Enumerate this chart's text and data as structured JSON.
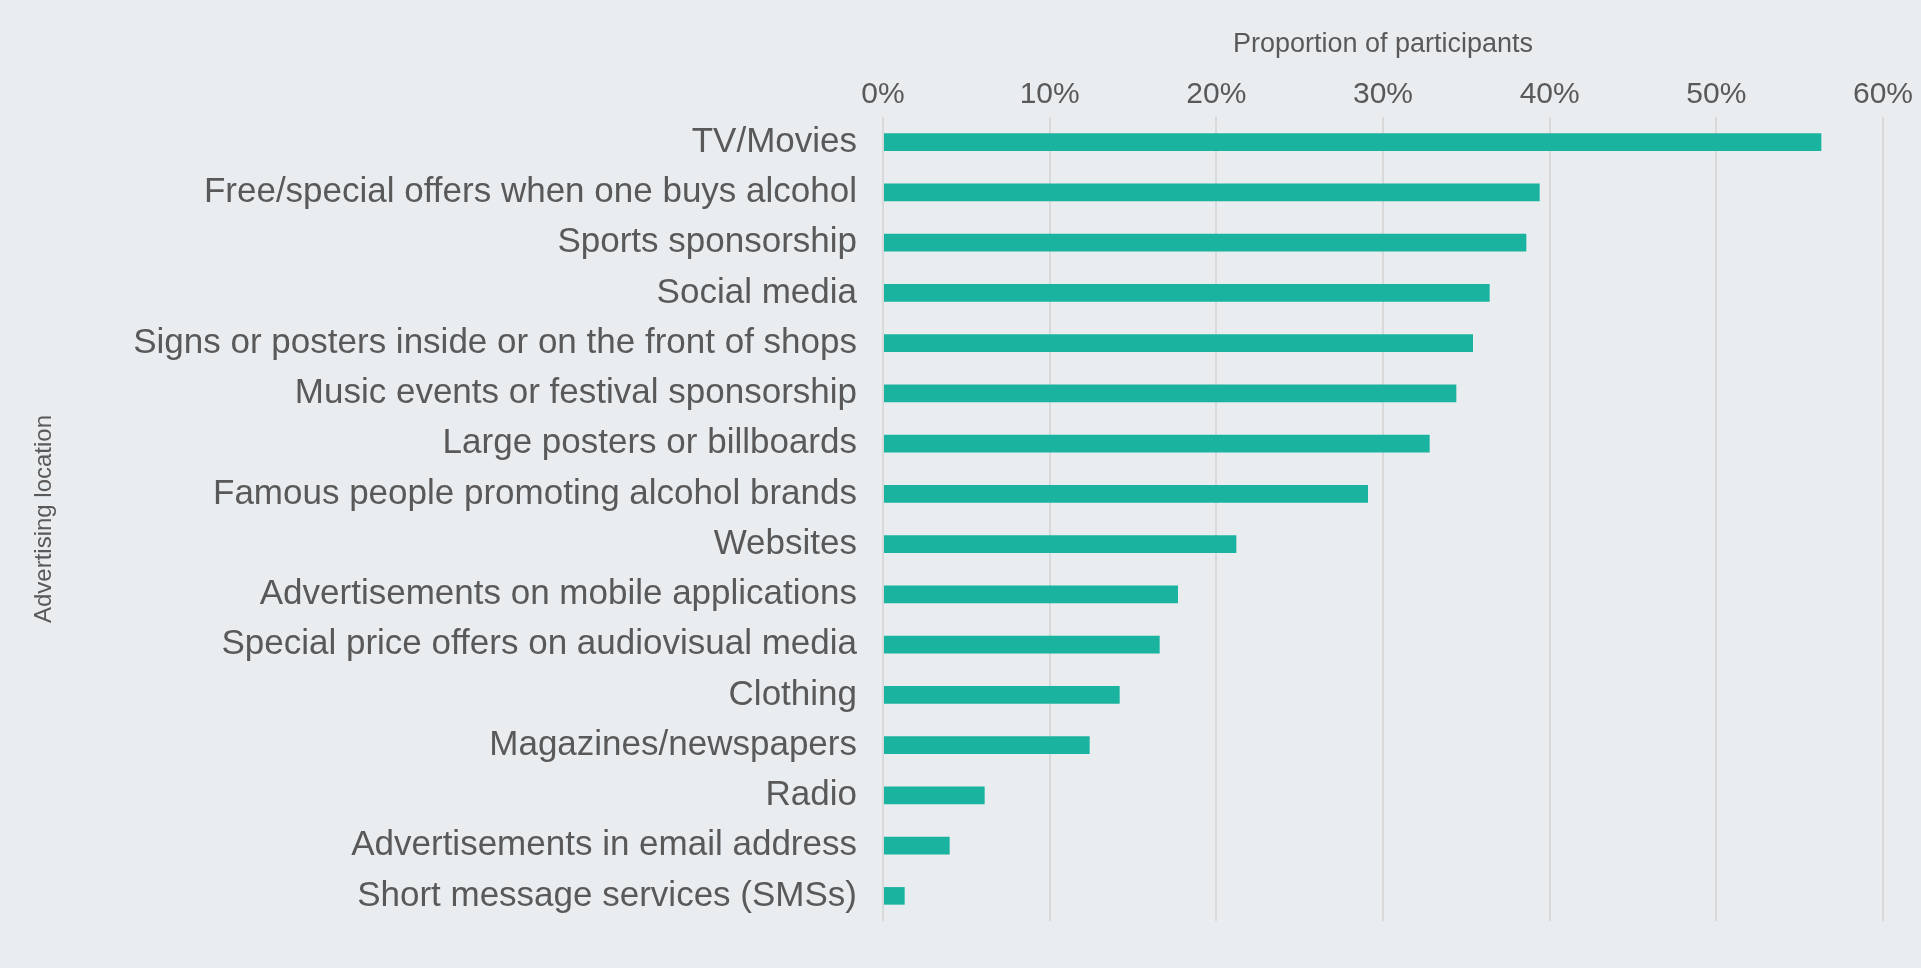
{
  "chart_data": {
    "type": "bar",
    "orientation": "horizontal",
    "xlabel": "Proportion of participants",
    "ylabel": "Advertising location",
    "categories": [
      "TV/Movies",
      "Free/special offers when one buys alcohol",
      "Sports sponsorship",
      "Social media",
      "Signs or posters inside or on the front of shops",
      "Music events or festival sponsorship",
      "Large posters or billboards",
      "Famous people promoting alcohol brands",
      "Websites",
      "Advertisements on mobile applications",
      "Special price offers on audiovisual media",
      "Clothing",
      "Magazines/newspapers",
      "Radio",
      "Advertisements in email address",
      "Short message services (SMSs)"
    ],
    "values": [
      56.3,
      39.4,
      38.6,
      36.4,
      35.4,
      34.4,
      32.8,
      29.1,
      21.2,
      17.7,
      16.6,
      14.2,
      12.4,
      6.1,
      4.0,
      1.3
    ],
    "color": "#1ab39f",
    "xlim": [
      0,
      60
    ],
    "xticks": [
      {
        "value": 0,
        "label": "0%"
      },
      {
        "value": 10,
        "label": "10%"
      },
      {
        "value": 20,
        "label": "20%"
      },
      {
        "value": 30,
        "label": "30%"
      },
      {
        "value": 40,
        "label": "40%"
      },
      {
        "value": 50,
        "label": "50%"
      },
      {
        "value": 60,
        "label": "60%"
      }
    ],
    "grid": "x",
    "legend": false
  }
}
